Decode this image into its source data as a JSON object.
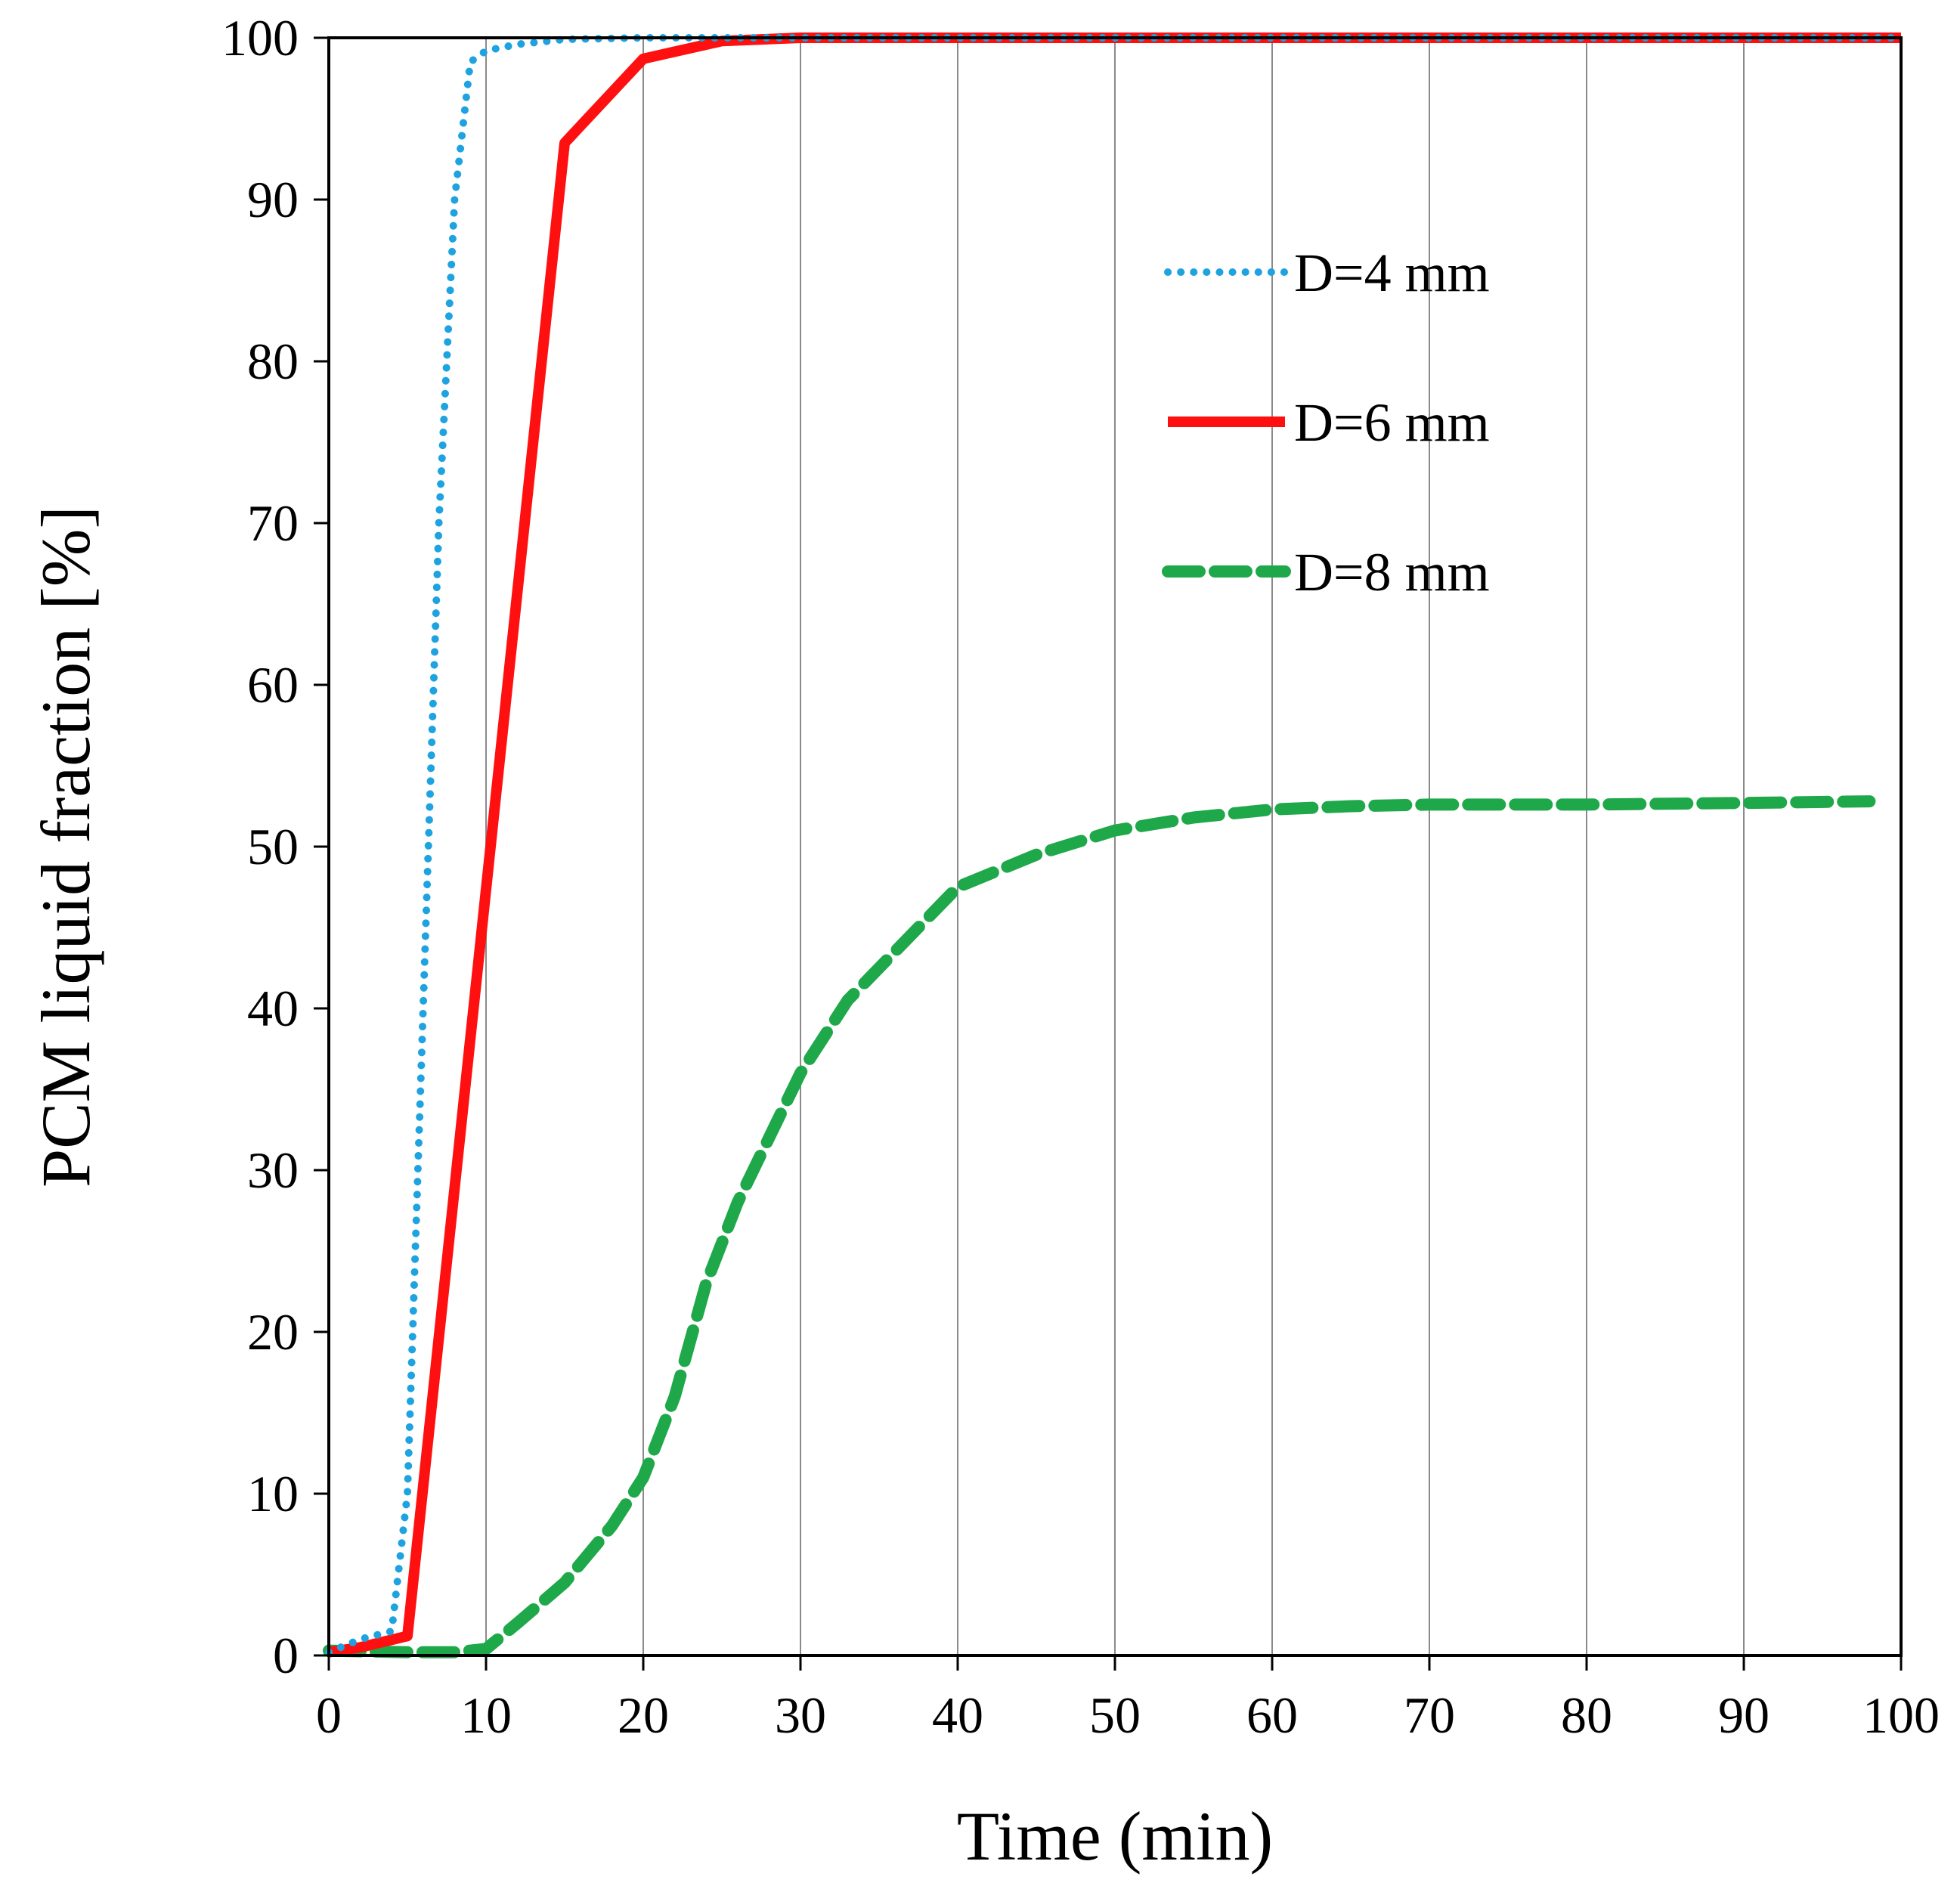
{
  "chart_data": {
    "type": "line",
    "title": "",
    "xlabel": "Time (min)",
    "ylabel": "PCM liquid fraction [%]",
    "xlim": [
      0,
      100
    ],
    "ylim": [
      0,
      100
    ],
    "xticks": [
      0,
      10,
      20,
      30,
      40,
      50,
      60,
      70,
      80,
      90,
      100
    ],
    "yticks": [
      0,
      10,
      20,
      30,
      40,
      50,
      60,
      70,
      80,
      90,
      100
    ],
    "grid": {
      "x": "vertical",
      "y": "off"
    },
    "legend_position": "upper-right inside",
    "series": [
      {
        "name": "D=4 mm",
        "color": "#1EA3E0",
        "style": "dotted",
        "points": [
          [
            0,
            0.2
          ],
          [
            2,
            1.0
          ],
          [
            4,
            1.5
          ],
          [
            5,
            10
          ],
          [
            6,
            40
          ],
          [
            7,
            70
          ],
          [
            8,
            90
          ],
          [
            9,
            98.5
          ],
          [
            10,
            99.2
          ],
          [
            12,
            99.6
          ],
          [
            15,
            99.9
          ],
          [
            20,
            100
          ],
          [
            30,
            100
          ],
          [
            50,
            100
          ],
          [
            70,
            100
          ],
          [
            100,
            100
          ]
        ]
      },
      {
        "name": "D=6 mm",
        "color": "#FF1010",
        "style": "solid",
        "points": [
          [
            0,
            0.2
          ],
          [
            2,
            0.5
          ],
          [
            5,
            1.2
          ],
          [
            15,
            93.5
          ],
          [
            20,
            98.7
          ],
          [
            25,
            99.8
          ],
          [
            30,
            100
          ],
          [
            50,
            100
          ],
          [
            70,
            100
          ],
          [
            100,
            100
          ]
        ]
      },
      {
        "name": "D=8 mm",
        "color": "#1FA84A",
        "style": "dashed",
        "points": [
          [
            0,
            0.3
          ],
          [
            5,
            0.2
          ],
          [
            8,
            0.2
          ],
          [
            10,
            0.4
          ],
          [
            12,
            2
          ],
          [
            15,
            4.5
          ],
          [
            18,
            8
          ],
          [
            20,
            11
          ],
          [
            22,
            16
          ],
          [
            24,
            23
          ],
          [
            26,
            28
          ],
          [
            28,
            32
          ],
          [
            30,
            36
          ],
          [
            33,
            40.5
          ],
          [
            36,
            43.5
          ],
          [
            40,
            47.5
          ],
          [
            45,
            49.5
          ],
          [
            50,
            51
          ],
          [
            55,
            51.8
          ],
          [
            60,
            52.3
          ],
          [
            65,
            52.5
          ],
          [
            70,
            52.6
          ],
          [
            80,
            52.6
          ],
          [
            90,
            52.7
          ],
          [
            98,
            52.8
          ]
        ]
      }
    ]
  }
}
